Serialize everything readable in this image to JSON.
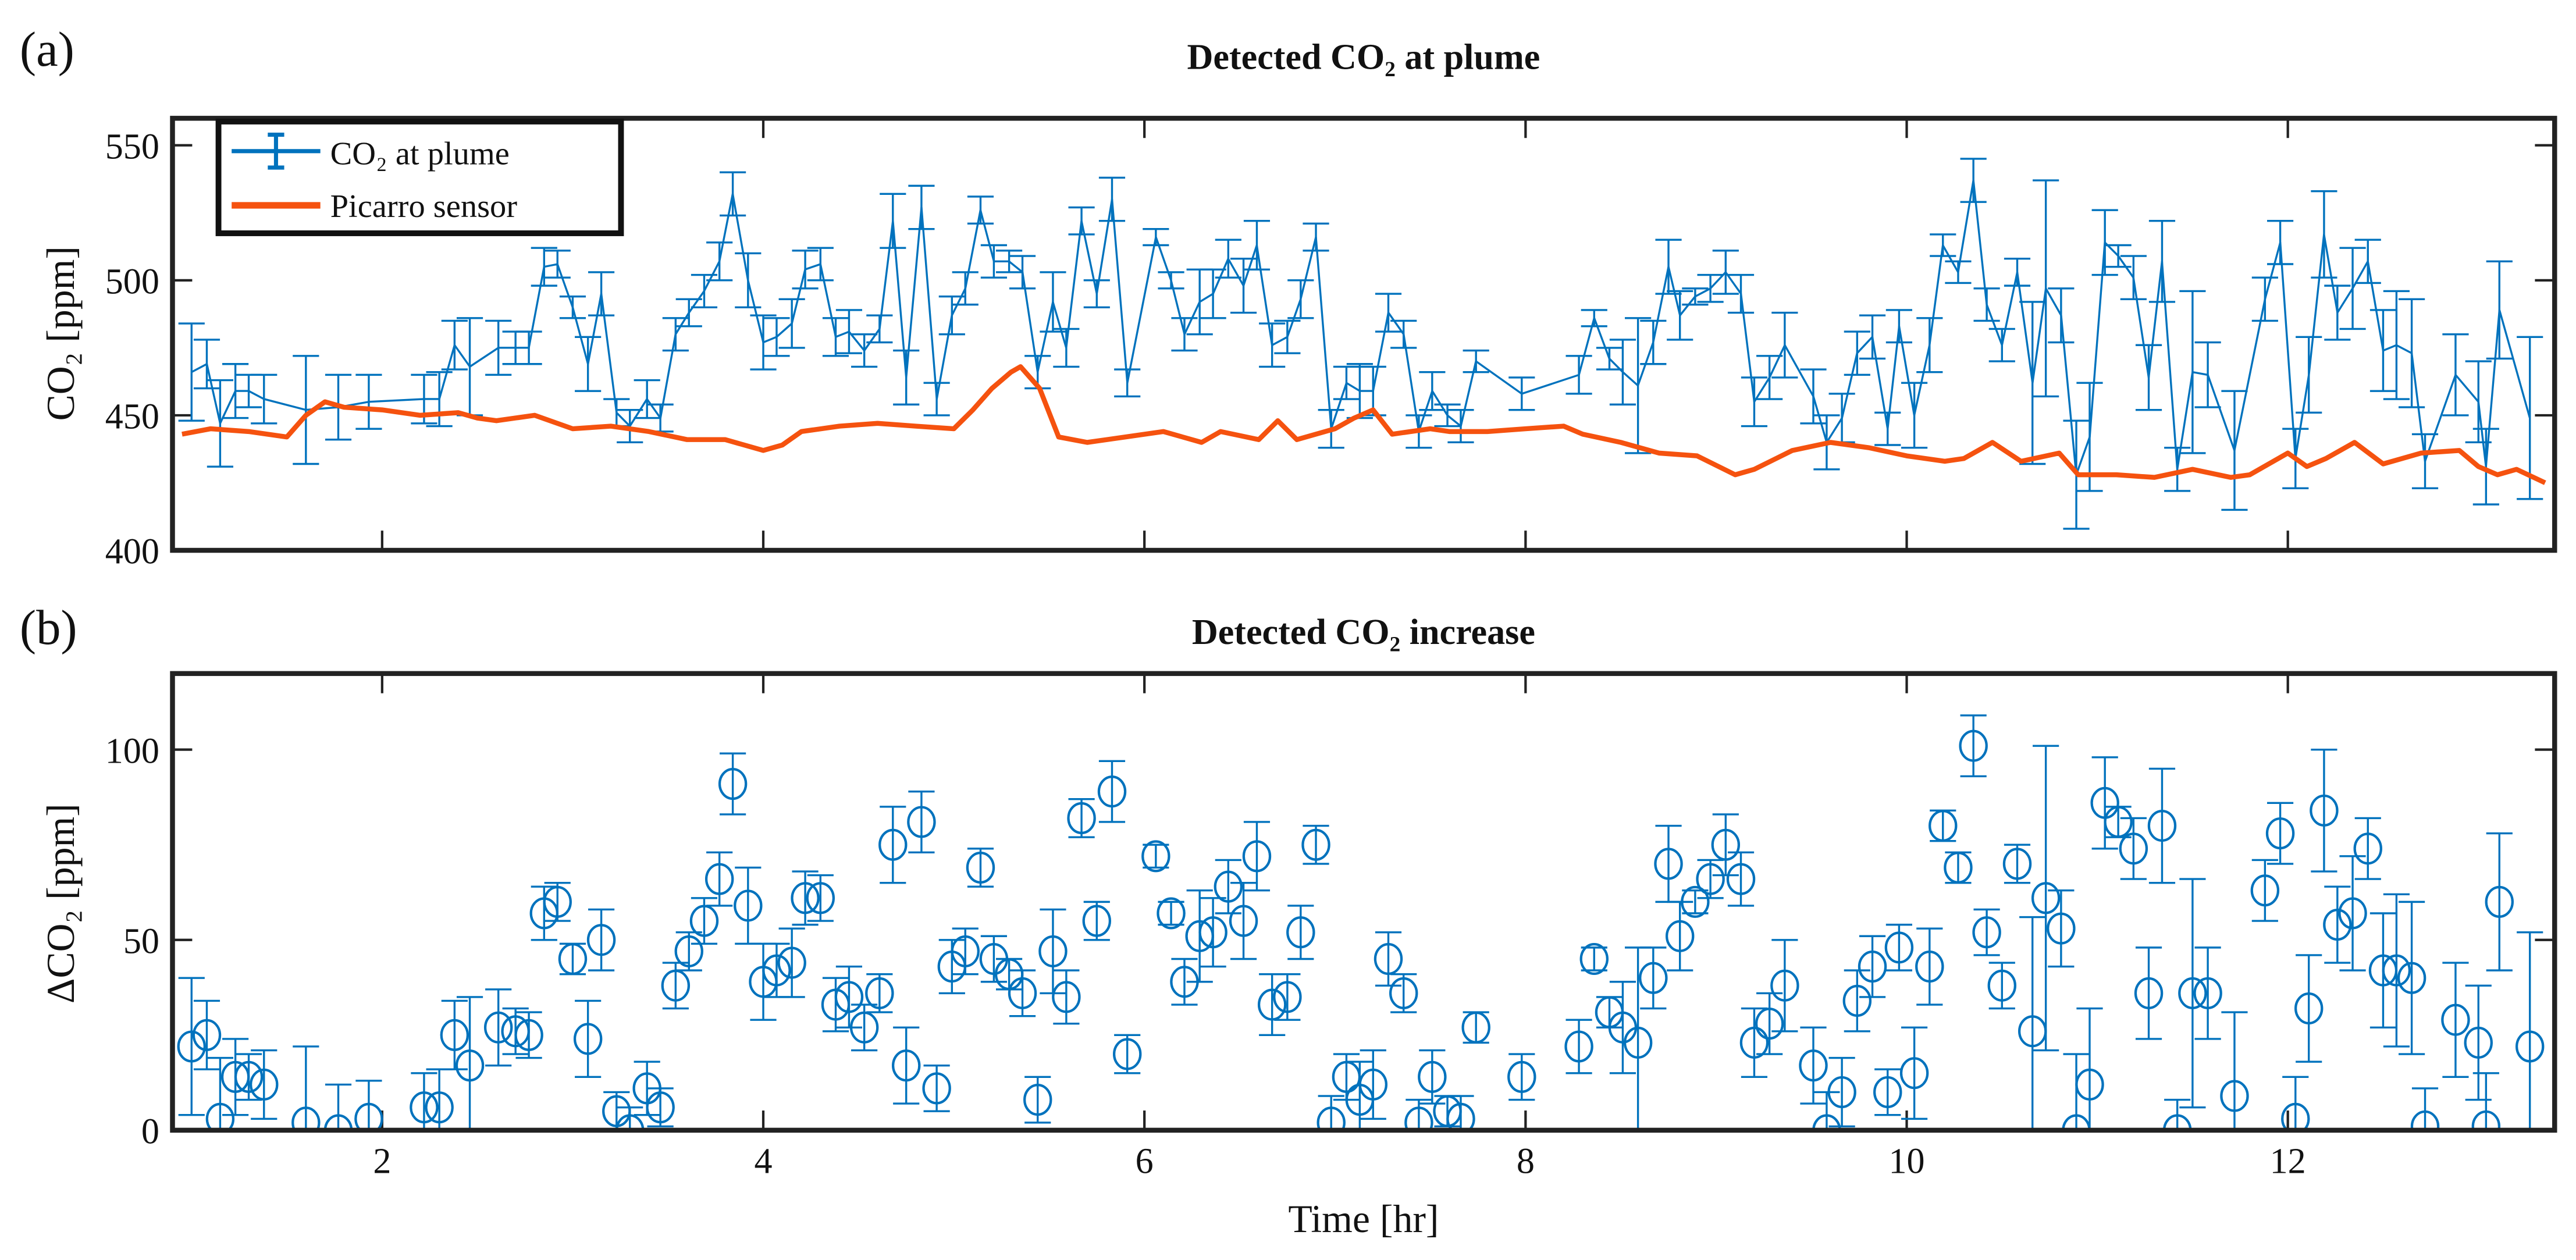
{
  "colors": {
    "plume": "#0072BD",
    "picarro": "#F5520F",
    "axis": "#222222"
  },
  "chart_data": [
    {
      "type": "line",
      "panel_label": "(a)",
      "title": "Detected CO₂ at plume",
      "xlabel": "",
      "ylabel": "CO₂ [ppm]",
      "xlim": [
        0.9,
        13.4
      ],
      "ylim": [
        400,
        560
      ],
      "xticks": [
        2,
        4,
        6,
        8,
        10,
        12
      ],
      "yticks": [
        400,
        450,
        500,
        550
      ],
      "ytick_labels": [
        "400",
        "450",
        "500",
        "550"
      ],
      "legend": {
        "placement": "top-left",
        "entries": [
          "CO₂ at plume",
          "Picarro sensor"
        ]
      },
      "series": [
        {
          "name": "CO₂ at plume",
          "style": "line-errorbar",
          "x": [
            1.0,
            1.08,
            1.15,
            1.23,
            1.3,
            1.38,
            1.6,
            1.77,
            1.93,
            2.22,
            2.3,
            2.38,
            2.46,
            2.61,
            2.7,
            2.77,
            2.85,
            2.92,
            3.0,
            3.08,
            3.15,
            3.23,
            3.3,
            3.39,
            3.46,
            3.54,
            3.61,
            3.69,
            3.77,
            3.84,
            3.92,
            4.0,
            4.07,
            4.15,
            4.22,
            4.3,
            4.38,
            4.45,
            4.53,
            4.61,
            4.68,
            4.75,
            4.83,
            4.91,
            4.99,
            5.06,
            5.14,
            5.21,
            5.29,
            5.36,
            5.44,
            5.52,
            5.59,
            5.67,
            5.75,
            5.83,
            5.91,
            6.06,
            6.14,
            6.21,
            6.29,
            6.36,
            6.44,
            6.52,
            6.59,
            6.67,
            6.75,
            6.82,
            6.9,
            6.98,
            7.06,
            7.13,
            7.2,
            7.28,
            7.36,
            7.44,
            7.51,
            7.59,
            7.66,
            7.74,
            7.98,
            8.28,
            8.36,
            8.44,
            8.51,
            8.59,
            8.67,
            8.75,
            8.81,
            8.89,
            8.97,
            9.05,
            9.13,
            9.2,
            9.28,
            9.36,
            9.51,
            9.58,
            9.66,
            9.74,
            9.82,
            9.9,
            9.96,
            10.04,
            10.12,
            10.19,
            10.27,
            10.35,
            10.42,
            10.5,
            10.58,
            10.66,
            10.73,
            10.81,
            10.89,
            10.96,
            11.04,
            11.11,
            11.19,
            11.27,
            11.34,
            11.42,
            11.5,
            11.58,
            11.72,
            11.88,
            11.96,
            12.04,
            12.11,
            12.19,
            12.26,
            12.34,
            12.42,
            12.5,
            12.57,
            12.65,
            12.72,
            12.88,
            13.0,
            13.04,
            13.11,
            13.27
          ],
          "values": [
            466,
            469,
            447,
            459,
            459,
            456,
            452,
            453,
            455,
            456,
            456,
            476,
            468,
            475,
            475,
            475,
            505,
            506,
            490,
            469,
            495,
            451,
            446,
            456,
            449,
            480,
            488,
            496,
            507,
            532,
            500,
            477,
            479,
            484,
            504,
            506,
            479,
            481,
            474,
            482,
            522,
            464,
            527,
            456,
            487,
            497,
            526,
            507,
            507,
            503,
            466,
            492,
            475,
            522,
            495,
            530,
            462,
            516,
            500,
            480,
            492,
            495,
            508,
            498,
            513,
            476,
            479,
            493,
            516,
            445,
            462,
            459,
            459,
            488,
            480,
            444,
            459,
            450,
            446,
            470,
            458,
            465,
            486,
            471,
            466,
            461,
            477,
            505,
            487,
            494,
            497,
            503,
            495,
            455,
            464,
            476,
            457,
            440,
            449,
            473,
            479,
            445,
            483,
            450,
            476,
            513,
            503,
            537,
            491,
            476,
            503,
            462,
            497,
            487,
            428,
            442,
            514,
            509,
            501,
            464,
            507,
            430,
            466,
            465,
            437,
            493,
            514,
            434,
            465,
            517,
            488,
            497,
            507,
            474,
            476,
            473,
            433,
            465,
            455,
            431,
            489,
            449
          ],
          "error": [
            18,
            9,
            16,
            10,
            6,
            9,
            20,
            12,
            10,
            9,
            10,
            9,
            18,
            10,
            6,
            6,
            7,
            5,
            4,
            10,
            8,
            5,
            6,
            7,
            5,
            6,
            5,
            6,
            7,
            8,
            10,
            10,
            7,
            9,
            7,
            6,
            7,
            8,
            6,
            5,
            10,
            10,
            8,
            6,
            7,
            6,
            5,
            6,
            4,
            6,
            6,
            11,
            7,
            5,
            5,
            8,
            5,
            3,
            3,
            6,
            12,
            9,
            7,
            10,
            9,
            8,
            6,
            7,
            5,
            7,
            6,
            10,
            9,
            7,
            5,
            6,
            7,
            4,
            6,
            4,
            6,
            7,
            3,
            4,
            12,
            25,
            8,
            10,
            9,
            3,
            5,
            8,
            7,
            9,
            8,
            12,
            10,
            10,
            9,
            8,
            8,
            6,
            6,
            12,
            10,
            4,
            4,
            8,
            6,
            6,
            5,
            30,
            40,
            10,
            20,
            20,
            12,
            4,
            8,
            12,
            15,
            8,
            30,
            12,
            22,
            8,
            8,
            11,
            14,
            16,
            10,
            15,
            8,
            15,
            20,
            20,
            10,
            15,
            15,
            14,
            18,
            30
          ]
        },
        {
          "name": "Picarro sensor",
          "style": "line",
          "x": [
            0.95,
            1.1,
            1.3,
            1.5,
            1.6,
            1.7,
            1.8,
            2.0,
            2.2,
            2.4,
            2.5,
            2.6,
            2.8,
            3.0,
            3.2,
            3.4,
            3.6,
            3.8,
            4.0,
            4.1,
            4.2,
            4.4,
            4.6,
            4.8,
            5.0,
            5.1,
            5.2,
            5.3,
            5.35,
            5.45,
            5.55,
            5.7,
            5.9,
            6.1,
            6.3,
            6.4,
            6.6,
            6.7,
            6.8,
            7.0,
            7.1,
            7.2,
            7.3,
            7.5,
            7.6,
            7.8,
            8.0,
            8.2,
            8.3,
            8.5,
            8.7,
            8.9,
            9.1,
            9.2,
            9.4,
            9.6,
            9.8,
            10.0,
            10.2,
            10.3,
            10.45,
            10.6,
            10.8,
            10.9,
            11.1,
            11.3,
            11.5,
            11.7,
            11.8,
            12.0,
            12.1,
            12.2,
            12.35,
            12.5,
            12.7,
            12.9,
            13.0,
            13.1,
            13.2,
            13.35
          ],
          "values": [
            443,
            445,
            444,
            442,
            450,
            455,
            453,
            452,
            450,
            451,
            449,
            448,
            450,
            445,
            446,
            444,
            441,
            441,
            437,
            439,
            444,
            446,
            447,
            446,
            445,
            452,
            460,
            466,
            468,
            460,
            442,
            440,
            442,
            444,
            440,
            444,
            441,
            448,
            441,
            445,
            449,
            452,
            443,
            445,
            444,
            444,
            445,
            446,
            443,
            440,
            436,
            435,
            428,
            430,
            437,
            440,
            438,
            435,
            433,
            434,
            440,
            433,
            436,
            428,
            428,
            427,
            430,
            427,
            428,
            436,
            431,
            434,
            440,
            432,
            436,
            437,
            431,
            428,
            430,
            425
          ]
        }
      ]
    },
    {
      "type": "scatter",
      "panel_label": "(b)",
      "title": "Detected CO₂ increase",
      "xlabel": "Time [hr]",
      "ylabel": "ΔCO₂ [ppm]",
      "xlim": [
        0.9,
        13.4
      ],
      "ylim": [
        0,
        120
      ],
      "xticks": [
        2,
        4,
        6,
        8,
        10,
        12
      ],
      "xtick_labels": [
        "2",
        "4",
        "6",
        "8",
        "10",
        "12"
      ],
      "yticks": [
        0,
        50,
        100
      ],
      "ytick_labels": [
        "0",
        "50",
        "100"
      ],
      "series": [
        {
          "name": "ΔCO₂",
          "style": "circle-errorbar",
          "x": [
            1.0,
            1.08,
            1.15,
            1.23,
            1.3,
            1.38,
            1.6,
            1.77,
            1.93,
            2.22,
            2.3,
            2.38,
            2.46,
            2.61,
            2.7,
            2.77,
            2.85,
            2.92,
            3.0,
            3.08,
            3.15,
            3.23,
            3.3,
            3.39,
            3.46,
            3.54,
            3.61,
            3.69,
            3.77,
            3.84,
            3.92,
            4.0,
            4.07,
            4.15,
            4.22,
            4.3,
            4.38,
            4.45,
            4.53,
            4.61,
            4.68,
            4.75,
            4.83,
            4.91,
            4.99,
            5.06,
            5.14,
            5.21,
            5.29,
            5.36,
            5.44,
            5.52,
            5.59,
            5.67,
            5.75,
            5.83,
            5.91,
            6.06,
            6.14,
            6.21,
            6.29,
            6.36,
            6.44,
            6.52,
            6.59,
            6.67,
            6.75,
            6.82,
            6.9,
            6.98,
            7.06,
            7.13,
            7.2,
            7.28,
            7.36,
            7.44,
            7.51,
            7.59,
            7.66,
            7.74,
            7.98,
            8.28,
            8.36,
            8.44,
            8.51,
            8.59,
            8.67,
            8.75,
            8.81,
            8.89,
            8.97,
            9.05,
            9.13,
            9.2,
            9.28,
            9.36,
            9.51,
            9.58,
            9.66,
            9.74,
            9.82,
            9.9,
            9.96,
            10.04,
            10.12,
            10.19,
            10.27,
            10.35,
            10.42,
            10.5,
            10.58,
            10.66,
            10.73,
            10.81,
            10.89,
            10.96,
            11.04,
            11.11,
            11.19,
            11.27,
            11.34,
            11.42,
            11.5,
            11.58,
            11.72,
            11.88,
            11.96,
            12.04,
            12.11,
            12.19,
            12.26,
            12.34,
            12.42,
            12.5,
            12.57,
            12.65,
            12.72,
            12.88,
            13.0,
            13.04,
            13.11,
            13.27
          ],
          "values": [
            22,
            25,
            3,
            14,
            14,
            12,
            2,
            0,
            3,
            6,
            6,
            25,
            17,
            27,
            26,
            25,
            57,
            60,
            45,
            24,
            50,
            5,
            0,
            11,
            6,
            38,
            47,
            55,
            66,
            91,
            59,
            39,
            42,
            44,
            61,
            61,
            33,
            35,
            27,
            36,
            75,
            17,
            81,
            11,
            43,
            47,
            69,
            45,
            41,
            36,
            8,
            47,
            35,
            82,
            55,
            89,
            20,
            72,
            57,
            39,
            51,
            52,
            64,
            55,
            72,
            33,
            35,
            52,
            75,
            2,
            14,
            8,
            12,
            45,
            36,
            2,
            14,
            5,
            3,
            27,
            14,
            22,
            45,
            31,
            27,
            23,
            40,
            70,
            51,
            60,
            66,
            75,
            66,
            23,
            28,
            38,
            17,
            0,
            10,
            34,
            43,
            10,
            48,
            15,
            43,
            80,
            69,
            101,
            52,
            38,
            70,
            26,
            61,
            53,
            0,
            12,
            86,
            81,
            74,
            36,
            80,
            0,
            36,
            36,
            9,
            63,
            78,
            3,
            32,
            84,
            54,
            57,
            74,
            42,
            42,
            40,
            1,
            29,
            23,
            1,
            60,
            22
          ],
          "error": [
            18,
            9,
            16,
            10,
            6,
            9,
            20,
            12,
            10,
            9,
            10,
            9,
            18,
            10,
            6,
            6,
            7,
            5,
            4,
            10,
            8,
            5,
            6,
            7,
            5,
            6,
            5,
            6,
            7,
            8,
            10,
            10,
            7,
            9,
            7,
            6,
            7,
            8,
            6,
            5,
            10,
            10,
            8,
            6,
            7,
            6,
            5,
            6,
            4,
            6,
            6,
            11,
            7,
            5,
            5,
            8,
            5,
            3,
            3,
            6,
            12,
            9,
            7,
            10,
            9,
            8,
            6,
            7,
            5,
            7,
            6,
            10,
            9,
            7,
            5,
            6,
            7,
            4,
            6,
            4,
            6,
            7,
            3,
            4,
            12,
            25,
            8,
            10,
            9,
            3,
            5,
            8,
            7,
            9,
            8,
            12,
            10,
            10,
            9,
            8,
            8,
            6,
            6,
            12,
            10,
            4,
            4,
            8,
            6,
            6,
            5,
            30,
            40,
            10,
            20,
            20,
            12,
            4,
            8,
            12,
            15,
            8,
            30,
            12,
            22,
            8,
            8,
            11,
            14,
            16,
            10,
            15,
            8,
            15,
            20,
            20,
            10,
            15,
            15,
            14,
            18,
            30
          ]
        }
      ]
    }
  ]
}
